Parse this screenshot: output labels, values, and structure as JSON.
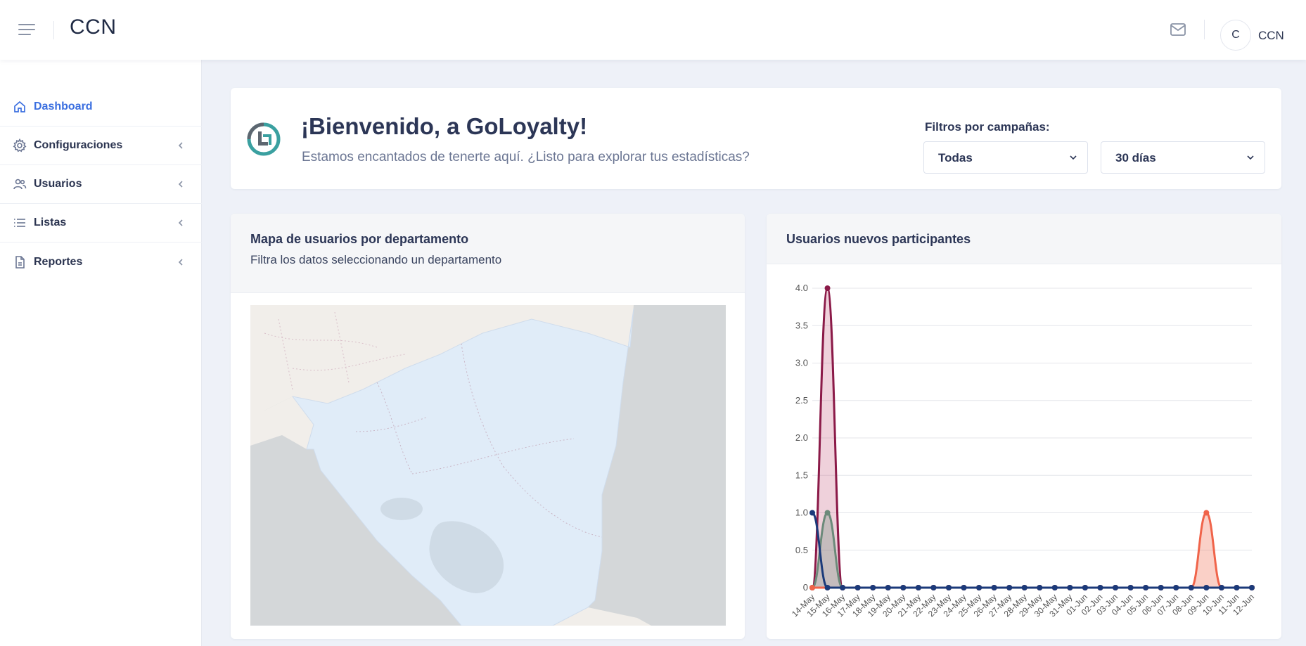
{
  "header": {
    "brand": "CCN",
    "user_initial": "C",
    "user_name": "CCN"
  },
  "sidebar": {
    "items": [
      {
        "label": "Dashboard",
        "icon": "home-icon",
        "active": true
      },
      {
        "label": "Configuraciones",
        "icon": "gear-icon"
      },
      {
        "label": "Usuarios",
        "icon": "users-icon"
      },
      {
        "label": "Listas",
        "icon": "list-icon"
      },
      {
        "label": "Reportes",
        "icon": "document-icon"
      }
    ]
  },
  "welcome": {
    "title": "¡Bienvenido, a GoLoyalty!",
    "subtitle": "Estamos encantados de tenerte aquí. ¿Listo para explorar tus estadísticas?",
    "filters_label": "Filtros por campañas:",
    "campaign_selected": "Todas",
    "days_selected": "30 días"
  },
  "map_card": {
    "title": "Mapa de usuarios por departamento",
    "subtitle": "Filtra los datos seleccionando un departamento"
  },
  "chart_card": {
    "title": "Usuarios nuevos participantes"
  },
  "colors": {
    "accent": "#3b6fe0",
    "series_maroon": "#8b1a48",
    "series_gray": "#6b8a7a",
    "series_navy": "#1b3a7a",
    "series_orange": "#f0644a"
  },
  "chart_data": {
    "type": "line",
    "x": [
      "14-May",
      "15-May",
      "16-May",
      "17-May",
      "18-May",
      "19-May",
      "20-May",
      "21-May",
      "22-May",
      "23-May",
      "24-May",
      "25-May",
      "26-May",
      "27-May",
      "28-May",
      "29-May",
      "30-May",
      "31-May",
      "01-Jun",
      "02-Jun",
      "03-Jun",
      "04-Jun",
      "05-Jun",
      "06-Jun",
      "07-Jun",
      "08-Jun",
      "09-Jun",
      "10-Jun",
      "11-Jun",
      "12-Jun"
    ],
    "ylim": [
      0,
      4
    ],
    "yticks": [
      "0",
      "0.5",
      "1.0",
      "1.5",
      "2.0",
      "2.5",
      "3.0",
      "3.5",
      "4.0"
    ],
    "grid": true,
    "series": [
      {
        "color": "#8b1a48",
        "fill": "rgba(190,70,110,0.25)",
        "values": [
          0,
          4,
          0,
          0,
          0,
          0,
          0,
          0,
          0,
          0,
          0,
          0,
          0,
          0,
          0,
          0,
          0,
          0,
          0,
          0,
          0,
          0,
          0,
          0,
          0,
          0,
          0,
          0,
          0,
          0
        ]
      },
      {
        "color": "#6b8a7a",
        "fill": "rgba(120,150,135,0.35)",
        "values": [
          0,
          1,
          0,
          0,
          0,
          0,
          0,
          0,
          0,
          0,
          0,
          0,
          0,
          0,
          0,
          0,
          0,
          0,
          0,
          0,
          0,
          0,
          0,
          0,
          0,
          0,
          0,
          0,
          0,
          0
        ]
      },
      {
        "color": "#f0644a",
        "fill": "rgba(240,120,95,0.35)",
        "values": [
          0,
          0,
          0,
          0,
          0,
          0,
          0,
          0,
          0,
          0,
          0,
          0,
          0,
          0,
          0,
          0,
          0,
          0,
          0,
          0,
          0,
          0,
          0,
          0,
          0,
          0,
          1,
          0,
          0,
          0
        ]
      },
      {
        "color": "#1b3a7a",
        "fill": "none",
        "values": [
          1,
          0,
          0,
          0,
          0,
          0,
          0,
          0,
          0,
          0,
          0,
          0,
          0,
          0,
          0,
          0,
          0,
          0,
          0,
          0,
          0,
          0,
          0,
          0,
          0,
          0,
          0,
          0,
          0,
          0
        ]
      }
    ]
  }
}
